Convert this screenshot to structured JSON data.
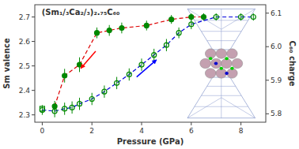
{
  "chart_data": {
    "type": "scatter",
    "title": "(Sm₁/₃Ca₂/₃)₂.₇₅C₆₀",
    "x_label": "Pressure (GPa)",
    "y_label": "Sm valence",
    "y2_label": "C₆₀ charge",
    "xlim": [
      -0.3,
      9.0
    ],
    "ylim": [
      2.27,
      2.75
    ],
    "y2lim": [
      5.775,
      6.125
    ],
    "xticks": [
      0,
      2,
      4,
      6,
      8
    ],
    "yticks": [
      2.3,
      2.4,
      2.5,
      2.6,
      2.7
    ],
    "y2ticks": [
      5.8,
      5.9,
      {
        "value": 6.0,
        "label": "6.0"
      },
      6.1
    ],
    "grid": false,
    "series": [
      {
        "type": "line",
        "line_style": "dashed",
        "color": "#dd0000",
        "x": [
          0.5,
          0.9,
          1.5,
          2.2,
          2.7,
          3.2,
          4.2,
          5.2,
          6.0,
          6.5
        ],
        "values": [
          2.335,
          2.46,
          2.505,
          2.635,
          2.645,
          2.655,
          2.665,
          2.69,
          2.7,
          2.7
        ]
      },
      {
        "type": "scatter",
        "marker": "circle",
        "color": "#008800",
        "x": [
          0.5,
          0.9,
          1.5,
          2.2,
          2.7,
          3.2,
          4.2,
          5.2,
          6.0,
          6.5
        ],
        "values": [
          2.335,
          2.46,
          2.505,
          2.635,
          2.645,
          2.655,
          2.665,
          2.69,
          2.7,
          2.7
        ],
        "errors": [
          0.022,
          0.028,
          0.03,
          0.022,
          0.022,
          0.022,
          0.02,
          0.018,
          0.015,
          0.015
        ]
      },
      {
        "type": "line",
        "line_style": "dashed",
        "color": "#0000dd",
        "x": [
          0.0,
          0.5,
          0.9,
          1.2,
          1.5,
          2.0,
          2.5,
          3.0,
          3.5,
          4.0,
          4.5,
          5.0,
          5.5,
          6.0,
          7.0,
          8.0,
          8.5
        ],
        "values": [
          2.32,
          2.315,
          2.325,
          2.33,
          2.345,
          2.365,
          2.395,
          2.43,
          2.465,
          2.505,
          2.545,
          2.585,
          2.635,
          2.67,
          2.7,
          2.7,
          2.7
        ]
      },
      {
        "type": "scatter",
        "marker": "circle-open",
        "color": "#008800",
        "x": [
          0.0,
          0.5,
          0.9,
          1.2,
          1.5,
          2.0,
          2.5,
          3.0,
          3.5,
          4.0,
          4.5,
          5.0,
          5.5,
          6.0,
          7.0,
          8.0,
          8.5
        ],
        "values": [
          2.32,
          2.315,
          2.325,
          2.33,
          2.345,
          2.365,
          2.395,
          2.43,
          2.465,
          2.505,
          2.545,
          2.585,
          2.635,
          2.67,
          2.7,
          2.7,
          2.7
        ],
        "errors": [
          0.02,
          0.025,
          0.025,
          0.025,
          0.025,
          0.025,
          0.025,
          0.025,
          0.025,
          0.025,
          0.025,
          0.025,
          0.022,
          0.02,
          0.015,
          0.015,
          0.015
        ]
      },
      {
        "type": "scatter",
        "marker": "square-open",
        "color": "#008800",
        "x": [
          0.0
        ],
        "values": [
          2.325
        ]
      }
    ],
    "arrows": [
      {
        "from": [
          2.15,
          2.56
        ],
        "to": [
          1.55,
          2.49
        ],
        "color": "red"
      },
      {
        "from": [
          3.8,
          2.455
        ],
        "to": [
          4.6,
          2.525
        ],
        "color": "blue"
      }
    ]
  }
}
